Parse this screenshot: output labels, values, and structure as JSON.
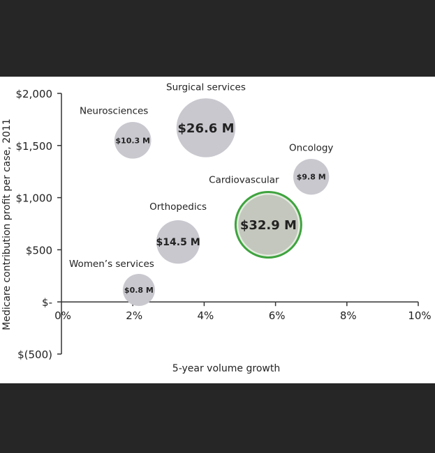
{
  "chart_data": {
    "type": "scatter",
    "subtype": "bubble",
    "xlabel": "5-year volume growth",
    "ylabel": "Medicare contribution profit per case, 2011",
    "xlim": [
      0,
      10
    ],
    "ylim": [
      -500,
      2000
    ],
    "x_ticks": [
      0,
      2,
      4,
      6,
      8,
      10
    ],
    "x_tick_labels": [
      "0%",
      "2%",
      "4%",
      "6%",
      "8%",
      "10%"
    ],
    "y_ticks": [
      2000,
      1500,
      1000,
      500,
      0,
      -500
    ],
    "y_tick_labels": [
      "$2,000",
      "$1,500",
      "$1,000",
      "$500",
      "$-",
      "$(500)"
    ],
    "grid": false,
    "series": [
      {
        "name": "Neurosciences",
        "x": 2.0,
        "y": 1550,
        "size": 10.3,
        "size_label": "$10.3 M",
        "highlight": false
      },
      {
        "name": "Surgical services",
        "x": 4.05,
        "y": 1670,
        "size": 26.6,
        "size_label": "$26.6 M",
        "highlight": false
      },
      {
        "name": "Oncology",
        "x": 7.0,
        "y": 1200,
        "size": 9.8,
        "size_label": "$9.8 M",
        "highlight": false
      },
      {
        "name": "Cardiovascular",
        "x": 5.8,
        "y": 740,
        "size": 32.9,
        "size_label": "$32.9 M",
        "highlight": true
      },
      {
        "name": "Orthopedics",
        "x": 3.27,
        "y": 575,
        "size": 14.5,
        "size_label": "$14.5 M",
        "highlight": false
      },
      {
        "name": "Women’s services",
        "x": 2.17,
        "y": 115,
        "size": 0.8,
        "size_label": "$0.8 M",
        "highlight": false
      }
    ],
    "colors": {
      "bubble": "#c9c8cf",
      "highlight_fill": "#c3c7bd",
      "highlight_ring": "#3fa33f",
      "axis": "#333333"
    }
  }
}
